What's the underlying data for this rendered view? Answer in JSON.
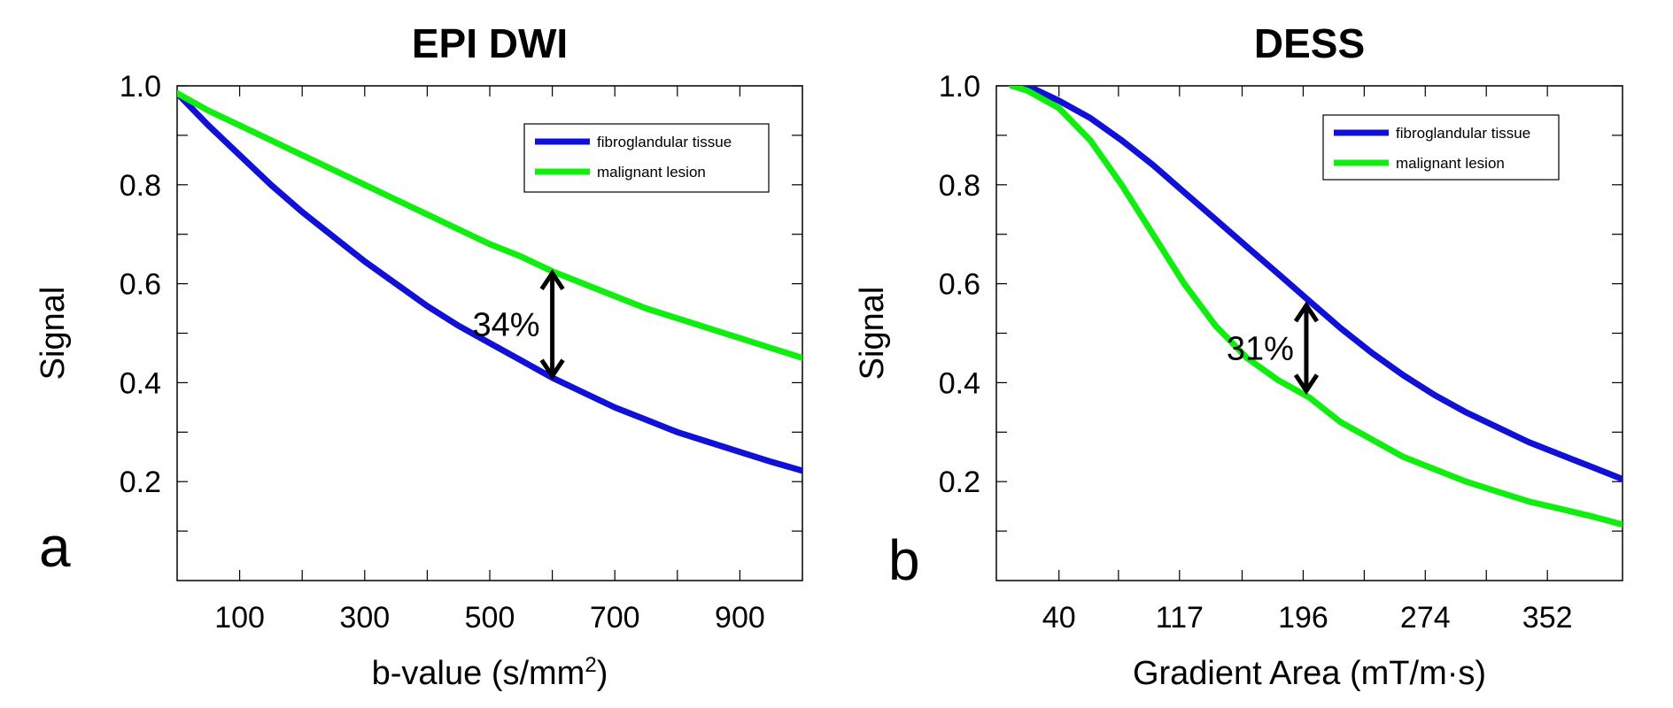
{
  "chart_data": [
    {
      "panel_label": "a",
      "type": "line",
      "title": "EPI DWI",
      "xlabel": "b-value (s/mm",
      "xlabel_sup": "2",
      "xlabel_end": ")",
      "ylabel": "Signal",
      "xlim": [
        0,
        1000
      ],
      "ylim": [
        0,
        1.0
      ],
      "xticks": [
        100,
        300,
        500,
        700,
        900
      ],
      "xtick_labels": [
        "100",
        "300",
        "500",
        "700",
        "900"
      ],
      "xminor": [
        200,
        400,
        600,
        800
      ],
      "yticks": [
        0.2,
        0.4,
        0.6,
        0.8,
        1.0
      ],
      "ytick_labels": [
        "0.2",
        "0.4",
        "0.6",
        "0.8",
        "1.0"
      ],
      "yminor": [
        0.1,
        0.3,
        0.5,
        0.7,
        0.9
      ],
      "legend_position": "top-right",
      "series": [
        {
          "name": "fibroglandular tissue",
          "color": "#1010d8",
          "x": [
            0,
            50,
            100,
            150,
            200,
            250,
            300,
            350,
            400,
            450,
            500,
            550,
            600,
            650,
            700,
            750,
            800,
            850,
            900,
            950,
            1000
          ],
          "y": [
            0.985,
            0.92,
            0.86,
            0.8,
            0.745,
            0.695,
            0.645,
            0.6,
            0.555,
            0.515,
            0.48,
            0.445,
            0.41,
            0.38,
            0.35,
            0.325,
            0.3,
            0.28,
            0.26,
            0.24,
            0.222
          ]
        },
        {
          "name": "malignant lesion",
          "color": "#10ee10",
          "x": [
            0,
            50,
            100,
            150,
            200,
            250,
            300,
            350,
            400,
            450,
            500,
            550,
            600,
            650,
            700,
            750,
            800,
            850,
            900,
            950,
            1000
          ],
          "y": [
            0.985,
            0.95,
            0.92,
            0.89,
            0.86,
            0.83,
            0.8,
            0.77,
            0.74,
            0.71,
            0.68,
            0.655,
            0.625,
            0.6,
            0.575,
            0.55,
            0.53,
            0.51,
            0.49,
            0.47,
            0.45
          ]
        }
      ],
      "annotation": {
        "text": "34%",
        "x": 600,
        "y_from": 0.41,
        "y_to": 0.625
      }
    },
    {
      "panel_label": "b",
      "type": "line",
      "title": "DESS",
      "xlabel": "Gradient Area (mT/m·s)",
      "ylabel": "Signal",
      "xlim": [
        0,
        400
      ],
      "ylim": [
        0,
        1.0
      ],
      "xticks": [
        40,
        117,
        196,
        274,
        352
      ],
      "xtick_labels": [
        "40",
        "117",
        "196",
        "274",
        "352"
      ],
      "xminor": [
        78,
        157,
        235,
        313
      ],
      "yticks": [
        0.2,
        0.4,
        0.6,
        0.8,
        1.0
      ],
      "ytick_labels": [
        "0.2",
        "0.4",
        "0.6",
        "0.8",
        "1.0"
      ],
      "yminor": [
        0.1,
        0.3,
        0.5,
        0.7,
        0.9
      ],
      "legend_position": "top-right",
      "series": [
        {
          "name": "fibroglandular tissue",
          "color": "#1010d8",
          "x": [
            10,
            20,
            40,
            60,
            80,
            100,
            120,
            140,
            160,
            180,
            200,
            220,
            240,
            260,
            280,
            300,
            320,
            340,
            360,
            380,
            400
          ],
          "y": [
            1.0,
            1.0,
            0.97,
            0.935,
            0.89,
            0.84,
            0.785,
            0.73,
            0.675,
            0.62,
            0.565,
            0.51,
            0.46,
            0.415,
            0.375,
            0.34,
            0.31,
            0.28,
            0.255,
            0.23,
            0.205
          ]
        },
        {
          "name": "malignant lesion",
          "color": "#10ee10",
          "x": [
            10,
            20,
            40,
            60,
            80,
            100,
            120,
            140,
            160,
            180,
            200,
            220,
            240,
            260,
            280,
            300,
            320,
            340,
            360,
            380,
            400
          ],
          "y": [
            1.0,
            0.99,
            0.955,
            0.89,
            0.8,
            0.7,
            0.6,
            0.515,
            0.45,
            0.405,
            0.37,
            0.32,
            0.285,
            0.25,
            0.225,
            0.2,
            0.18,
            0.16,
            0.145,
            0.13,
            0.113
          ]
        }
      ],
      "annotation": {
        "text": "31%",
        "x": 198,
        "y_from": 0.38,
        "y_to": 0.56
      }
    }
  ]
}
